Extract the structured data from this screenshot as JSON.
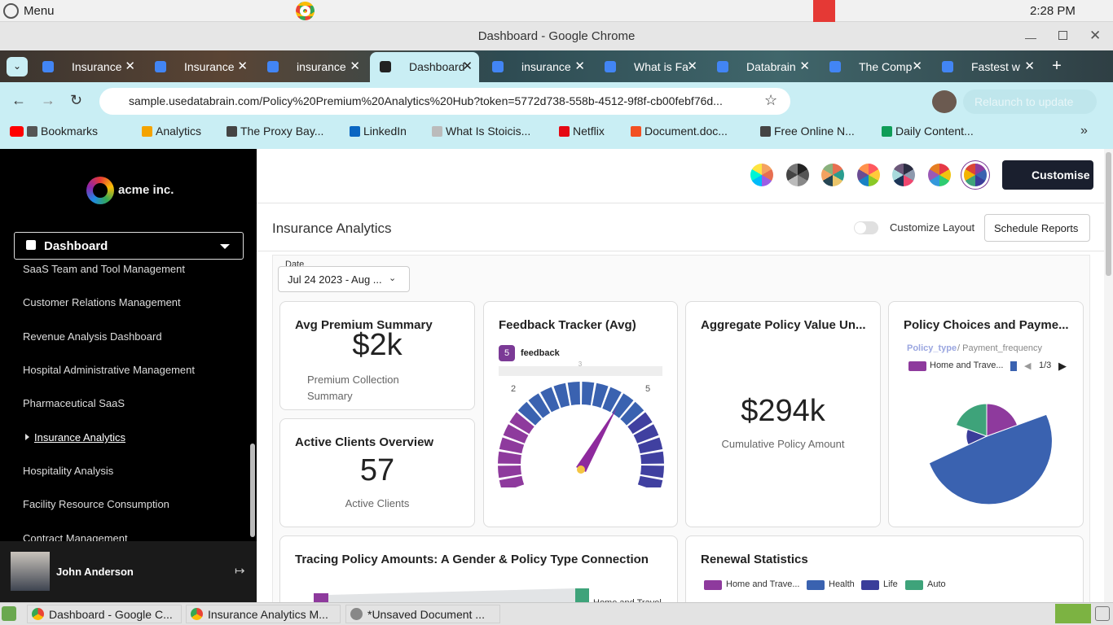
{
  "system_bar": {
    "menu": "Menu",
    "time": "2:28 PM"
  },
  "window": {
    "title": "Dashboard - Google Chrome"
  },
  "tabs": [
    "Insurance",
    "Insurance",
    "insurance",
    "Dashboard",
    "insurance",
    "What is Fa",
    "Databrain",
    "The Comp",
    "Fastest w"
  ],
  "address_bar": {
    "url": "sample.usedatabrain.com/Policy%20Premium%20Analytics%20Hub?token=5772d738-558b-4512-9f8f-cb00febf76d...",
    "relaunch": "Relaunch to update"
  },
  "bookmarks": [
    "Bookmarks",
    "Analytics",
    "The Proxy Bay...",
    "LinkedIn",
    "What Is Stoicis...",
    "Netflix",
    "Document.doc...",
    "Free Online N...",
    "Daily Content..."
  ],
  "sidebar": {
    "brand": "acme inc.",
    "dashboard": "Dashboard",
    "items": [
      "SaaS Team and Tool Management",
      "Customer Relations Management",
      "Revenue Analysis Dashboard",
      "Hospital Administrative Management",
      "Pharmaceutical SaaS",
      "Insurance Analytics",
      "Hospitality Analysis",
      "Facility Resource Consumption",
      "Contract Management"
    ],
    "user": "John Anderson"
  },
  "header": {
    "customise": "Customise",
    "page_title": "Insurance Analytics",
    "customize_layout": "Customize Layout",
    "schedule_reports": "Schedule Reports",
    "date_label": "Date",
    "date_value": "Jul 24 2023 - Aug ..."
  },
  "cards": {
    "avg_premium": {
      "title": "Avg Premium Summary",
      "value": "$2k",
      "caption": "Premium Collection Summary"
    },
    "active_clients": {
      "title": "Active Clients Overview",
      "value": "57",
      "caption": "Active Clients"
    },
    "feedback": {
      "title": "Feedback Tracker (Avg)",
      "badge": "5",
      "legend": "feedback",
      "ticks": [
        "3",
        "2",
        "5"
      ]
    },
    "aggregate": {
      "title": "Aggregate Policy Value Un...",
      "value": "$294k",
      "caption": "Cumulative Policy Amount"
    },
    "policy_choices": {
      "title": "Policy Choices and Payme...",
      "dim_active": "Policy_type",
      "dim_other": "/ Payment_frequency",
      "legend": "Home and Trave...",
      "page": "1/3"
    },
    "tracing": {
      "title": "Tracing Policy Amounts: A Gender & Policy Type Connection",
      "label": "Home and Travel"
    },
    "renewal": {
      "title": "Renewal Statistics",
      "legend": [
        "Home and Trave...",
        "Health",
        "Life",
        "Auto"
      ]
    }
  },
  "taskbar": [
    "Dashboard - Google C...",
    "Insurance Analytics M...",
    "*Unsaved Document ..."
  ]
}
